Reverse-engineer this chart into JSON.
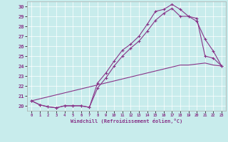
{
  "xlabel": "Windchill (Refroidissement éolien,°C)",
  "bg_color": "#c8ecec",
  "line_color": "#883388",
  "xlim": [
    -0.5,
    23.5
  ],
  "ylim": [
    19.5,
    30.5
  ],
  "yticks": [
    20,
    21,
    22,
    23,
    24,
    25,
    26,
    27,
    28,
    29,
    30
  ],
  "xticks": [
    0,
    1,
    2,
    3,
    4,
    5,
    6,
    7,
    8,
    9,
    10,
    11,
    12,
    13,
    14,
    15,
    16,
    17,
    18,
    19,
    20,
    21,
    22,
    23
  ],
  "line1_x": [
    0,
    1,
    2,
    3,
    4,
    5,
    6,
    7,
    8,
    9,
    10,
    11,
    12,
    13,
    14,
    15,
    16,
    17,
    18,
    19,
    20,
    21,
    22,
    23
  ],
  "line1_y": [
    20.5,
    20.1,
    19.9,
    19.8,
    20.0,
    20.0,
    20.0,
    19.85,
    22.3,
    23.3,
    24.5,
    25.6,
    26.2,
    27.0,
    28.2,
    29.5,
    29.7,
    30.2,
    29.7,
    29.0,
    28.8,
    25.0,
    24.8,
    24.0
  ],
  "line2_x": [
    0,
    1,
    2,
    3,
    4,
    5,
    6,
    7,
    8,
    9,
    10,
    11,
    12,
    13,
    14,
    15,
    16,
    17,
    18,
    19,
    20,
    21,
    22,
    23
  ],
  "line2_y": [
    20.5,
    20.1,
    19.9,
    19.8,
    20.0,
    20.0,
    20.0,
    19.85,
    21.8,
    22.8,
    24.0,
    25.0,
    25.8,
    26.5,
    27.5,
    28.6,
    29.3,
    29.8,
    29.0,
    29.0,
    28.5,
    26.7,
    25.5,
    24.0
  ],
  "line3_x": [
    0,
    1,
    2,
    3,
    4,
    5,
    6,
    7,
    8,
    9,
    10,
    11,
    12,
    13,
    14,
    15,
    16,
    17,
    18,
    19,
    20,
    21,
    22,
    23
  ],
  "line3_y": [
    20.5,
    20.7,
    20.9,
    21.1,
    21.3,
    21.5,
    21.7,
    21.9,
    22.1,
    22.3,
    22.5,
    22.7,
    22.9,
    23.1,
    23.3,
    23.5,
    23.7,
    23.9,
    24.1,
    24.1,
    24.2,
    24.3,
    24.1,
    24.0
  ]
}
